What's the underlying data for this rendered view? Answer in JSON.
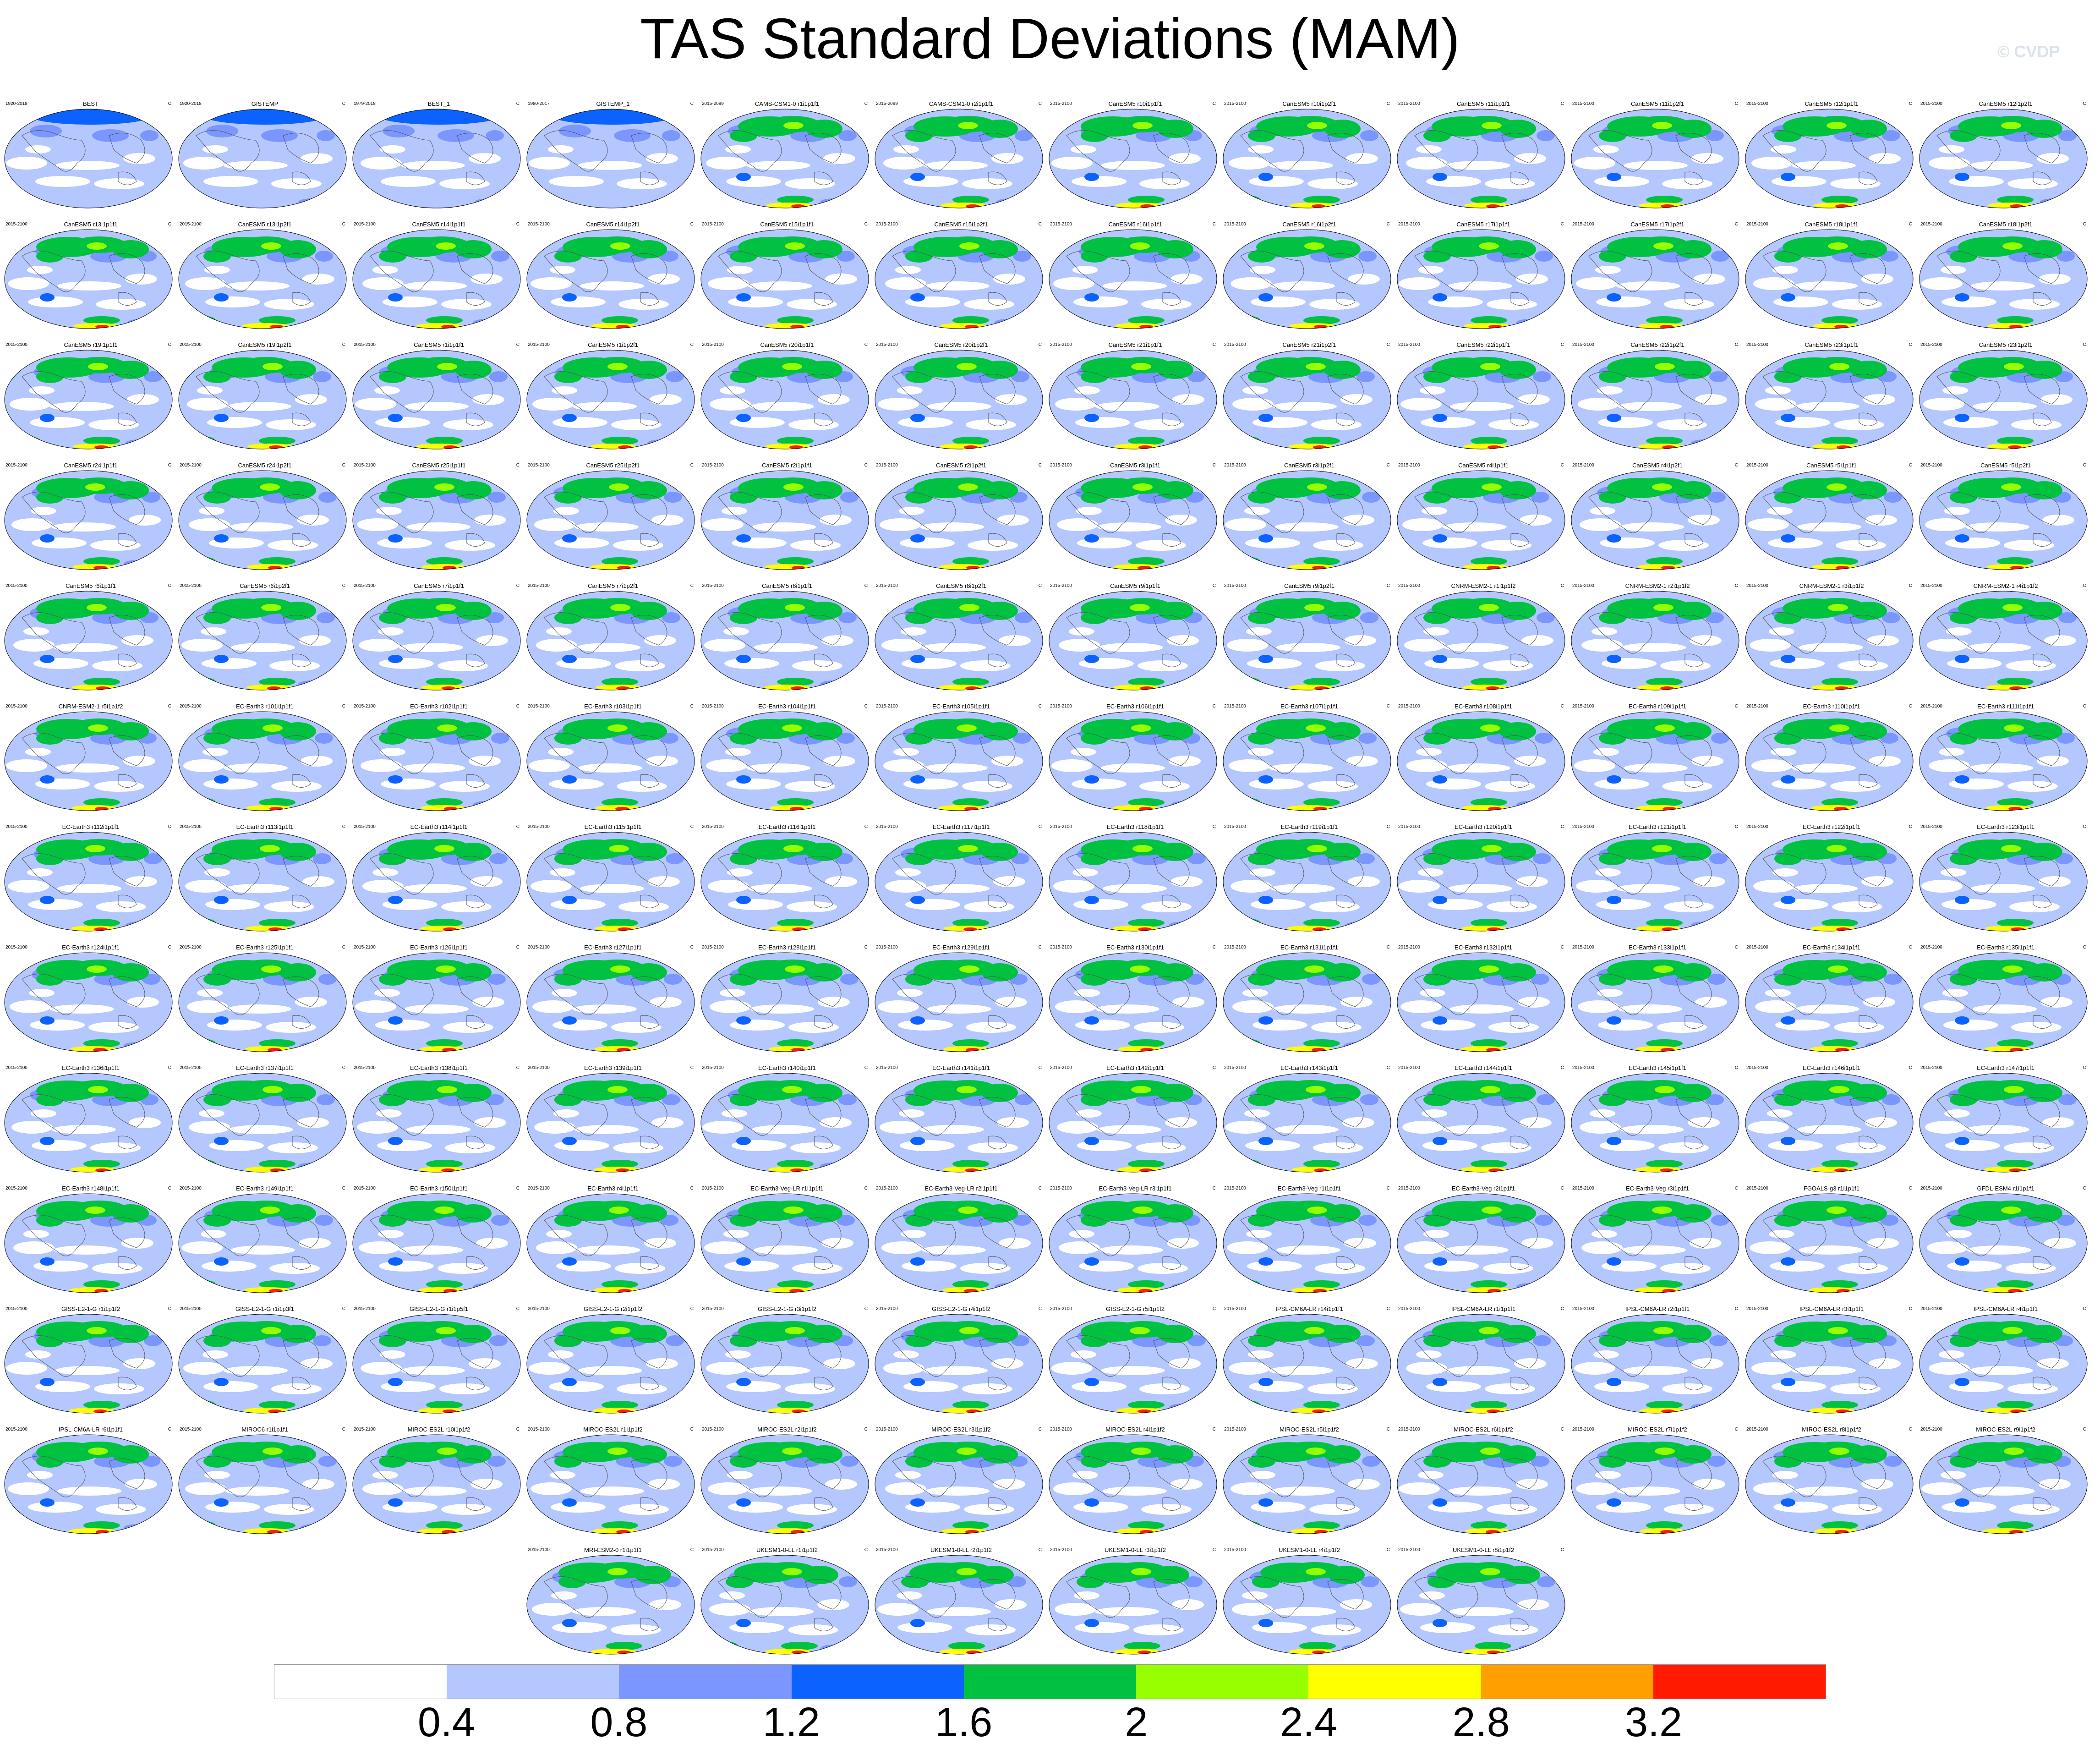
{
  "title": "TAS Standard Deviations (MAM)",
  "watermark": "© CVDP",
  "units": "C",
  "colorbar": {
    "colors": [
      "#ffffff",
      "#b4c7ff",
      "#7b97ff",
      "#0c62ff",
      "#00c240",
      "#96ff00",
      "#ffff00",
      "#ffa000",
      "#ff1a00"
    ],
    "labels": [
      "0.4",
      "0.8",
      "1.2",
      "1.6",
      "2",
      "2.4",
      "2.8",
      "3.2"
    ]
  },
  "panels": [
    {
      "name": "BEST",
      "period": "1920-2018"
    },
    {
      "name": "GISTEMP",
      "period": "1920-2018"
    },
    {
      "name": "BEST_1",
      "period": "1979-2018"
    },
    {
      "name": "GISTEMP_1",
      "period": "1980-2017"
    },
    {
      "name": "CAMS-CSM1-0 r1i1p1f1",
      "period": "2015-2099"
    },
    {
      "name": "CAMS-CSM1-0 r2i1p1f1",
      "period": "2015-2099"
    },
    {
      "name": "CanESM5 r10i1p1f1",
      "period": "2015-2100"
    },
    {
      "name": "CanESM5 r10i1p2f1",
      "period": "2015-2100"
    },
    {
      "name": "CanESM5 r11i1p1f1",
      "period": "2015-2100"
    },
    {
      "name": "CanESM5 r11i1p2f1",
      "period": "2015-2100"
    },
    {
      "name": "CanESM5 r12i1p1f1",
      "period": "2015-2100"
    },
    {
      "name": "CanESM5 r12i1p2f1",
      "period": "2015-2100"
    },
    {
      "name": "CanESM5 r13i1p1f1",
      "period": "2015-2100"
    },
    {
      "name": "CanESM5 r13i1p2f1",
      "period": "2015-2100"
    },
    {
      "name": "CanESM5 r14i1p1f1",
      "period": "2015-2100"
    },
    {
      "name": "CanESM5 r14i1p2f1",
      "period": "2015-2100"
    },
    {
      "name": "CanESM5 r15i1p1f1",
      "period": "2015-2100"
    },
    {
      "name": "CanESM5 r15i1p2f1",
      "period": "2015-2100"
    },
    {
      "name": "CanESM5 r16i1p1f1",
      "period": "2015-2100"
    },
    {
      "name": "CanESM5 r16i1p2f1",
      "period": "2015-2100"
    },
    {
      "name": "CanESM5 r17i1p1f1",
      "period": "2015-2100"
    },
    {
      "name": "CanESM5 r17i1p2f1",
      "period": "2015-2100"
    },
    {
      "name": "CanESM5 r18i1p1f1",
      "period": "2015-2100"
    },
    {
      "name": "CanESM5 r18i1p2f1",
      "period": "2015-2100"
    },
    {
      "name": "CanESM5 r19i1p1f1",
      "period": "2015-2100"
    },
    {
      "name": "CanESM5 r19i1p2f1",
      "period": "2015-2100"
    },
    {
      "name": "CanESM5 r1i1p1f1",
      "period": "2015-2100"
    },
    {
      "name": "CanESM5 r1i1p2f1",
      "period": "2015-2100"
    },
    {
      "name": "CanESM5 r20i1p1f1",
      "period": "2015-2100"
    },
    {
      "name": "CanESM5 r20i1p2f1",
      "period": "2015-2100"
    },
    {
      "name": "CanESM5 r21i1p1f1",
      "period": "2015-2100"
    },
    {
      "name": "CanESM5 r21i1p2f1",
      "period": "2015-2100"
    },
    {
      "name": "CanESM5 r22i1p1f1",
      "period": "2015-2100"
    },
    {
      "name": "CanESM5 r22i1p2f1",
      "period": "2015-2100"
    },
    {
      "name": "CanESM5 r23i1p1f1",
      "period": "2015-2100"
    },
    {
      "name": "CanESM5 r23i1p2f1",
      "period": "2015-2100"
    },
    {
      "name": "CanESM5 r24i1p1f1",
      "period": "2015-2100"
    },
    {
      "name": "CanESM5 r24i1p2f1",
      "period": "2015-2100"
    },
    {
      "name": "CanESM5 r25i1p1f1",
      "period": "2015-2100"
    },
    {
      "name": "CanESM5 r25i1p2f1",
      "period": "2015-2100"
    },
    {
      "name": "CanESM5 r2i1p1f1",
      "period": "2015-2100"
    },
    {
      "name": "CanESM5 r2i1p2f1",
      "period": "2015-2100"
    },
    {
      "name": "CanESM5 r3i1p1f1",
      "period": "2015-2100"
    },
    {
      "name": "CanESM5 r3i1p2f1",
      "period": "2015-2100"
    },
    {
      "name": "CanESM5 r4i1p1f1",
      "period": "2015-2100"
    },
    {
      "name": "CanESM5 r4i1p2f1",
      "period": "2015-2100"
    },
    {
      "name": "CanESM5 r5i1p1f1",
      "period": "2015-2100"
    },
    {
      "name": "CanESM5 r5i1p2f1",
      "period": "2015-2100"
    },
    {
      "name": "CanESM5 r6i1p1f1",
      "period": "2015-2100"
    },
    {
      "name": "CanESM5 r6i1p2f1",
      "period": "2015-2100"
    },
    {
      "name": "CanESM5 r7i1p1f1",
      "period": "2015-2100"
    },
    {
      "name": "CanESM5 r7i1p2f1",
      "period": "2015-2100"
    },
    {
      "name": "CanESM5 r8i1p1f1",
      "period": "2015-2100"
    },
    {
      "name": "CanESM5 r8i1p2f1",
      "period": "2015-2100"
    },
    {
      "name": "CanESM5 r9i1p1f1",
      "period": "2015-2100"
    },
    {
      "name": "CanESM5 r9i1p2f1",
      "period": "2015-2100"
    },
    {
      "name": "CNRM-ESM2-1 r1i1p1f2",
      "period": "2015-2100"
    },
    {
      "name": "CNRM-ESM2-1 r2i1p1f2",
      "period": "2015-2100"
    },
    {
      "name": "CNRM-ESM2-1 r3i1p1f2",
      "period": "2015-2100"
    },
    {
      "name": "CNRM-ESM2-1 r4i1p1f2",
      "period": "2015-2100"
    },
    {
      "name": "CNRM-ESM2-1 r5i1p1f2",
      "period": "2015-2100"
    },
    {
      "name": "EC-Earth3 r101i1p1f1",
      "period": "2015-2100"
    },
    {
      "name": "EC-Earth3 r102i1p1f1",
      "period": "2015-2100"
    },
    {
      "name": "EC-Earth3 r103i1p1f1",
      "period": "2015-2100"
    },
    {
      "name": "EC-Earth3 r104i1p1f1",
      "period": "2015-2100"
    },
    {
      "name": "EC-Earth3 r105i1p1f1",
      "period": "2015-2100"
    },
    {
      "name": "EC-Earth3 r106i1p1f1",
      "period": "2015-2100"
    },
    {
      "name": "EC-Earth3 r107i1p1f1",
      "period": "2015-2100"
    },
    {
      "name": "EC-Earth3 r108i1p1f1",
      "period": "2015-2100"
    },
    {
      "name": "EC-Earth3 r109i1p1f1",
      "period": "2015-2100"
    },
    {
      "name": "EC-Earth3 r110i1p1f1",
      "period": "2015-2100"
    },
    {
      "name": "EC-Earth3 r111i1p1f1",
      "period": "2015-2100"
    },
    {
      "name": "EC-Earth3 r112i1p1f1",
      "period": "2015-2100"
    },
    {
      "name": "EC-Earth3 r113i1p1f1",
      "period": "2015-2100"
    },
    {
      "name": "EC-Earth3 r114i1p1f1",
      "period": "2015-2100"
    },
    {
      "name": "EC-Earth3 r115i1p1f1",
      "period": "2015-2100"
    },
    {
      "name": "EC-Earth3 r116i1p1f1",
      "period": "2015-2100"
    },
    {
      "name": "EC-Earth3 r117i1p1f1",
      "period": "2015-2100"
    },
    {
      "name": "EC-Earth3 r118i1p1f1",
      "period": "2015-2100"
    },
    {
      "name": "EC-Earth3 r119i1p1f1",
      "period": "2015-2100"
    },
    {
      "name": "EC-Earth3 r120i1p1f1",
      "period": "2015-2100"
    },
    {
      "name": "EC-Earth3 r121i1p1f1",
      "period": "2015-2100"
    },
    {
      "name": "EC-Earth3 r122i1p1f1",
      "period": "2015-2100"
    },
    {
      "name": "EC-Earth3 r123i1p1f1",
      "period": "2015-2100"
    },
    {
      "name": "EC-Earth3 r124i1p1f1",
      "period": "2015-2100"
    },
    {
      "name": "EC-Earth3 r125i1p1f1",
      "period": "2015-2100"
    },
    {
      "name": "EC-Earth3 r126i1p1f1",
      "period": "2015-2100"
    },
    {
      "name": "EC-Earth3 r127i1p1f1",
      "period": "2015-2100"
    },
    {
      "name": "EC-Earth3 r128i1p1f1",
      "period": "2015-2100"
    },
    {
      "name": "EC-Earth3 r129i1p1f1",
      "period": "2015-2100"
    },
    {
      "name": "EC-Earth3 r130i1p1f1",
      "period": "2015-2100"
    },
    {
      "name": "EC-Earth3 r131i1p1f1",
      "period": "2015-2100"
    },
    {
      "name": "EC-Earth3 r132i1p1f1",
      "period": "2015-2100"
    },
    {
      "name": "EC-Earth3 r133i1p1f1",
      "period": "2015-2100"
    },
    {
      "name": "EC-Earth3 r134i1p1f1",
      "period": "2015-2100"
    },
    {
      "name": "EC-Earth3 r135i1p1f1",
      "period": "2015-2100"
    },
    {
      "name": "EC-Earth3 r136i1p1f1",
      "period": "2015-2100"
    },
    {
      "name": "EC-Earth3 r137i1p1f1",
      "period": "2015-2100"
    },
    {
      "name": "EC-Earth3 r138i1p1f1",
      "period": "2015-2100"
    },
    {
      "name": "EC-Earth3 r139i1p1f1",
      "period": "2015-2100"
    },
    {
      "name": "EC-Earth3 r140i1p1f1",
      "period": "2015-2100"
    },
    {
      "name": "EC-Earth3 r141i1p1f1",
      "period": "2015-2100"
    },
    {
      "name": "EC-Earth3 r142i1p1f1",
      "period": "2015-2100"
    },
    {
      "name": "EC-Earth3 r143i1p1f1",
      "period": "2015-2100"
    },
    {
      "name": "EC-Earth3 r144i1p1f1",
      "period": "2015-2100"
    },
    {
      "name": "EC-Earth3 r145i1p1f1",
      "period": "2015-2100"
    },
    {
      "name": "EC-Earth3 r146i1p1f1",
      "period": "2015-2100"
    },
    {
      "name": "EC-Earth3 r147i1p1f1",
      "period": "2015-2100"
    },
    {
      "name": "EC-Earth3 r148i1p1f1",
      "period": "2015-2100"
    },
    {
      "name": "EC-Earth3 r149i1p1f1",
      "period": "2015-2100"
    },
    {
      "name": "EC-Earth3 r150i1p1f1",
      "period": "2015-2100"
    },
    {
      "name": "EC-Earth3 r4i1p1f1",
      "period": "2015-2100"
    },
    {
      "name": "EC-Earth3-Veg-LR r1i1p1f1",
      "period": "2015-2100"
    },
    {
      "name": "EC-Earth3-Veg-LR r2i1p1f1",
      "period": "2015-2100"
    },
    {
      "name": "EC-Earth3-Veg-LR r3i1p1f1",
      "period": "2015-2100"
    },
    {
      "name": "EC-Earth3-Veg r1i1p1f1",
      "period": "2015-2100"
    },
    {
      "name": "EC-Earth3-Veg r2i1p1f1",
      "period": "2015-2100"
    },
    {
      "name": "EC-Earth3-Veg r3i1p1f1",
      "period": "2015-2100"
    },
    {
      "name": "FGOALS-g3 r1i1p1f1",
      "period": "2015-2100"
    },
    {
      "name": "GFDL-ESM4 r1i1p1f1",
      "period": "2015-2100"
    },
    {
      "name": "GISS-E2-1-G r1i1p1f2",
      "period": "2015-2100"
    },
    {
      "name": "GISS-E2-1-G r1i1p3f1",
      "period": "2015-2100"
    },
    {
      "name": "GISS-E2-1-G r1i1p5f1",
      "period": "2015-2100"
    },
    {
      "name": "GISS-E2-1-G r2i1p1f2",
      "period": "2015-2100"
    },
    {
      "name": "GISS-E2-1-G r3i1p1f2",
      "period": "2015-2100"
    },
    {
      "name": "GISS-E2-1-G r4i1p1f2",
      "period": "2015-2100"
    },
    {
      "name": "GISS-E2-1-G r5i1p1f2",
      "period": "2015-2100"
    },
    {
      "name": "IPSL-CM6A-LR r14i1p1f1",
      "period": "2015-2100"
    },
    {
      "name": "IPSL-CM6A-LR r1i1p1f1",
      "period": "2015-2100"
    },
    {
      "name": "IPSL-CM6A-LR r2i1p1f1",
      "period": "2015-2100"
    },
    {
      "name": "IPSL-CM6A-LR r3i1p1f1",
      "period": "2015-2100"
    },
    {
      "name": "IPSL-CM6A-LR r4i1p1f1",
      "period": "2015-2100"
    },
    {
      "name": "IPSL-CM6A-LR r6i1p1f1",
      "period": "2015-2100"
    },
    {
      "name": "MIROC6 r1i1p1f1",
      "period": "2015-2100"
    },
    {
      "name": "MIROC-ES2L r10i1p1f2",
      "period": "2015-2100"
    },
    {
      "name": "MIROC-ES2L r1i1p1f2",
      "period": "2015-2100"
    },
    {
      "name": "MIROC-ES2L r2i1p1f2",
      "period": "2015-2100"
    },
    {
      "name": "MIROC-ES2L r3i1p1f2",
      "period": "2015-2100"
    },
    {
      "name": "MIROC-ES2L r4i1p1f2",
      "period": "2015-2100"
    },
    {
      "name": "MIROC-ES2L r5i1p1f2",
      "period": "2015-2100"
    },
    {
      "name": "MIROC-ES2L r6i1p1f2",
      "period": "2015-2100"
    },
    {
      "name": "MIROC-ES2L r7i1p1f2",
      "period": "2015-2100"
    },
    {
      "name": "MIROC-ES2L r8i1p1f2",
      "period": "2015-2100"
    },
    {
      "name": "MIROC-ES2L r9i1p1f2",
      "period": "2015-2100"
    },
    {
      "name": "MRI-ESM2-0 r1i1p1f1",
      "period": "2015-2100"
    },
    {
      "name": "UKESM1-0-LL r1i1p1f2",
      "period": "2015-2100"
    },
    {
      "name": "UKESM1-0-LL r2i1p1f2",
      "period": "2015-2100"
    },
    {
      "name": "UKESM1-0-LL r3i1p1f2",
      "period": "2015-2100"
    },
    {
      "name": "UKESM1-0-LL r4i1p1f2",
      "period": "2015-2100"
    },
    {
      "name": "UKESM1-0-LL r8i1p1f2",
      "period": "2015-2100"
    }
  ]
}
